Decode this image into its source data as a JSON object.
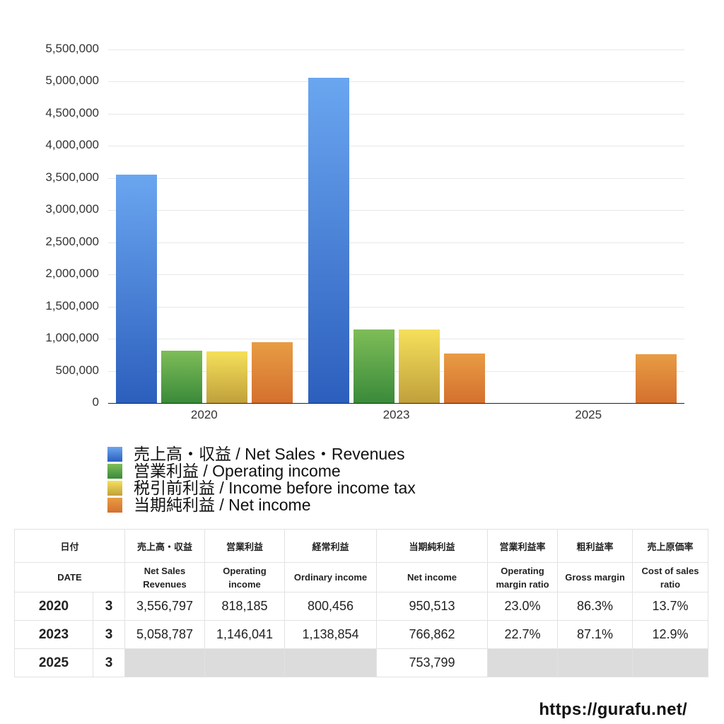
{
  "chart_data": {
    "type": "bar",
    "title": "",
    "xlabel": "",
    "ylabel": "",
    "ylim": [
      0,
      5500000
    ],
    "yticks": [
      "0",
      "500,000",
      "1,000,000",
      "1,500,000",
      "2,000,000",
      "2,500,000",
      "3,000,000",
      "3,500,000",
      "4,000,000",
      "4,500,000",
      "5,000,000",
      "5,500,000"
    ],
    "grid": true,
    "legend_position": "bottom",
    "categories": [
      "2020",
      "2023",
      "2025"
    ],
    "series": [
      {
        "name": "売上高・収益 / Net Sales・Revenues",
        "color_top": "#6aa6f0",
        "color_bottom": "#2c5fbd",
        "values": [
          3556797,
          5058787,
          null
        ]
      },
      {
        "name": "営業利益 / Operating income",
        "color_top": "#7ebd58",
        "color_bottom": "#3a8a3a",
        "values": [
          818185,
          1146041,
          null
        ]
      },
      {
        "name": "税引前利益 / Income before income tax",
        "color_top": "#f5e05a",
        "color_bottom": "#c0a03c",
        "values": [
          800456,
          1138854,
          null
        ]
      },
      {
        "name": "当期純利益 / Net income",
        "color_top": "#e89c44",
        "color_bottom": "#d4702e",
        "values": [
          950513,
          766862,
          753799
        ]
      }
    ]
  },
  "table": {
    "header_jp": [
      "日付",
      "",
      "売上高・収益",
      "営業利益",
      "経常利益",
      "当期純利益",
      "営業利益率",
      "粗利益率",
      "売上原価率"
    ],
    "header_en": [
      "DATE",
      "Net Sales\nRevenues",
      "Operating\nincome",
      "Ordinary income",
      "Net income",
      "Operating\nmargin ratio",
      "Gross margin",
      "Cost of sales\nratio"
    ],
    "rows": [
      {
        "year": "2020",
        "month": "3",
        "net_sales": "3,556,797",
        "operating_income": "818,185",
        "ordinary_income": "800,456",
        "net_income": "950,513",
        "op_margin": "23.0%",
        "gross_margin": "86.3%",
        "cost_ratio": "13.7%"
      },
      {
        "year": "2023",
        "month": "3",
        "net_sales": "5,058,787",
        "operating_income": "1,146,041",
        "ordinary_income": "1,138,854",
        "net_income": "766,862",
        "op_margin": "22.7%",
        "gross_margin": "87.1%",
        "cost_ratio": "12.9%"
      },
      {
        "year": "2025",
        "month": "3",
        "net_sales": "",
        "operating_income": "",
        "ordinary_income": "",
        "net_income": "753,799",
        "op_margin": "",
        "gross_margin": "",
        "cost_ratio": ""
      }
    ]
  },
  "footer": {
    "url_text": "https://gurafu.net/"
  }
}
